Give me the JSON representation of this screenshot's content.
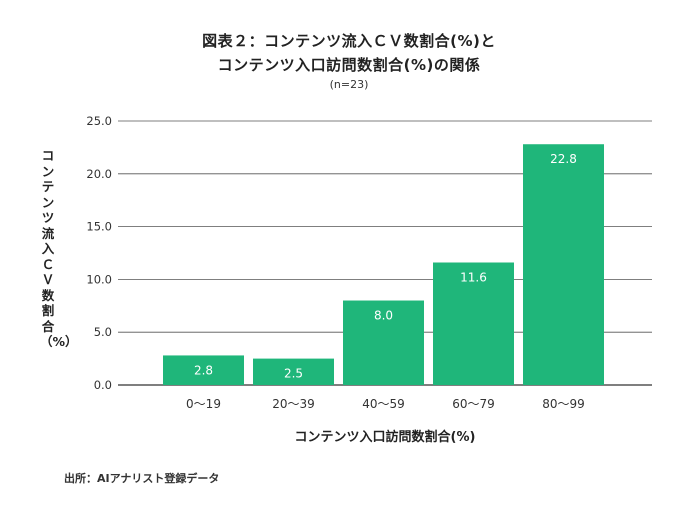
{
  "chart_data": {
    "type": "bar",
    "title_line1": "図表２：コンテンツ流入ＣＶ数割合(%)と",
    "title_line2": "コンテンツ入口訪問数割合(%)の関係",
    "subtitle": "(n=23)",
    "xlabel": "コンテンツ入口訪問数割合(%)",
    "ylabel": "コンテンツ流入ＣＶ数割合（%）",
    "categories": [
      "0～19",
      "20～39",
      "40～59",
      "60～79",
      "80～99"
    ],
    "values": [
      2.8,
      2.5,
      8.0,
      11.6,
      22.8
    ],
    "value_labels": [
      "2.8",
      "2.5",
      "8.0",
      "11.6",
      "22.8"
    ],
    "ylim": [
      0,
      25
    ],
    "yticks": [
      "0.0",
      "5.0",
      "10.0",
      "15.0",
      "20.0",
      "25.0"
    ],
    "grid": true,
    "legend": "none",
    "bar_color": "#1fb67a",
    "label_color": "#ffffff"
  },
  "source": "出所：AIアナリスト登録データ"
}
